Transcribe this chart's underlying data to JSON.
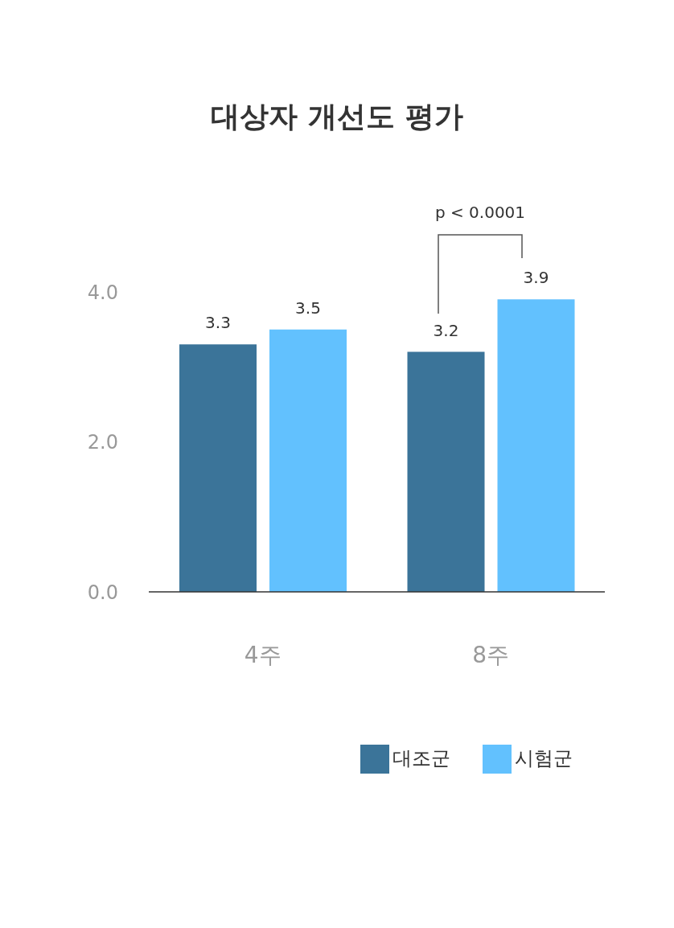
{
  "chart_data": {
    "type": "bar",
    "title": "대상자 개선도 평가",
    "categories": [
      "4주",
      "8주"
    ],
    "series": [
      {
        "name": "대조군",
        "color": "#3b7499",
        "values": [
          3.3,
          3.2
        ]
      },
      {
        "name": "시험군",
        "color": "#62c1fe",
        "values": [
          3.5,
          3.9
        ]
      }
    ],
    "ylim": [
      0,
      4
    ],
    "yticks": [
      {
        "value": 0,
        "label": "0.0"
      },
      {
        "value": 2,
        "label": "2.0"
      },
      {
        "value": 4,
        "label": "4.0"
      }
    ],
    "data_labels": true,
    "legend": "bottom right",
    "annotations": [
      "p < 0.0001"
    ]
  }
}
